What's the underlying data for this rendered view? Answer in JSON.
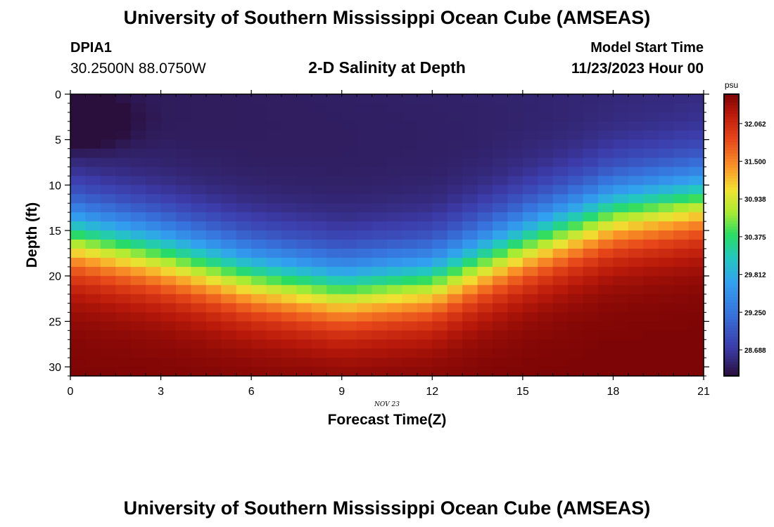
{
  "header": {
    "title": "University of Southern Mississippi Ocean Cube (AMSEAS)",
    "station": "DPIA1",
    "coords": "30.2500N  88.0750W",
    "plot_title": "2-D Salinity at Depth",
    "start_label": "Model Start Time",
    "start_value": "11/23/2023 Hour 00",
    "footer_title": "University of Southern Mississippi Ocean Cube (AMSEAS)"
  },
  "chart_data": {
    "type": "heatmap",
    "title": "2-D Salinity at Depth",
    "xlabel": "Forecast Time(Z)",
    "ylabel": "Depth (ft)",
    "x_date_label": "NOV 23",
    "xlim": [
      0,
      21
    ],
    "ylim": [
      0,
      31
    ],
    "y_inverted": true,
    "x_ticks": [
      0,
      3,
      6,
      9,
      12,
      15,
      18,
      21
    ],
    "y_ticks": [
      0,
      5,
      10,
      15,
      20,
      25,
      30
    ],
    "colorbar": {
      "unit": "psu",
      "min": 28.3,
      "max": 32.5,
      "ticks": [
        "32.062",
        "31.500",
        "30.938",
        "30.375",
        "29.812",
        "29.250",
        "28.688"
      ]
    },
    "grid": {
      "nx": 42,
      "ny": 31,
      "x_step_hours": 0.5,
      "y_step_ft": 1
    },
    "surface_salinity": 28.4,
    "bottom_salinity": 32.5,
    "min_salinity": 28.35,
    "halocline_depth_ft": [
      [
        0,
        15.5
      ],
      [
        3,
        17.5
      ],
      [
        6,
        20.0
      ],
      [
        9,
        21.5
      ],
      [
        12,
        20.5
      ],
      [
        15,
        16.5
      ],
      [
        18,
        13.0
      ],
      [
        21,
        11.5
      ]
    ]
  }
}
